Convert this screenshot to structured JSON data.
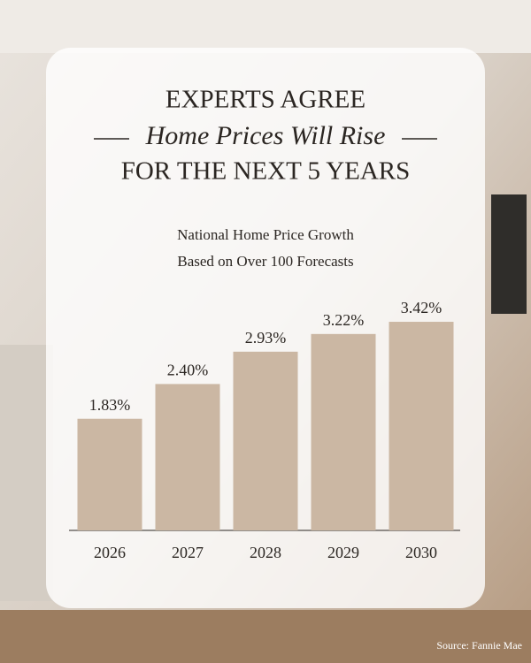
{
  "chart_data": {
    "type": "bar",
    "title": [
      "EXPERTS AGREE",
      "Home Prices Will Rise",
      "FOR THE NEXT 5 YEARS"
    ],
    "subtitle": [
      "National Home Price Growth",
      "Based on Over 100 Forecasts"
    ],
    "categories": [
      "2026",
      "2027",
      "2028",
      "2029",
      "2030"
    ],
    "values": [
      1.83,
      2.4,
      2.93,
      3.22,
      3.42
    ],
    "value_labels": [
      "1.83%",
      "2.40%",
      "2.93%",
      "3.22%",
      "3.42%"
    ],
    "color": "#cbb7a3",
    "source": "Source: Fannie Mae"
  }
}
